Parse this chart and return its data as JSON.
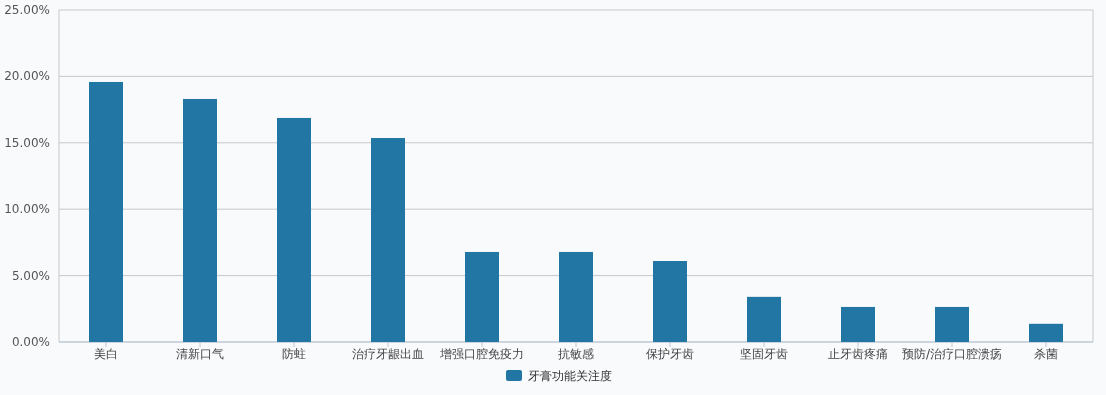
{
  "chart_data": {
    "type": "bar",
    "categories": [
      "美白",
      "清新口气",
      "防蛀",
      "治疗牙龈出血",
      "增强口腔免疫力",
      "抗敏感",
      "保护牙齿",
      "坚固牙齿",
      "止牙齿疼痛",
      "预防/治疗口腔溃疡",
      "杀菌"
    ],
    "series": [
      {
        "name": "牙膏功能关注度",
        "color": "#2276a3",
        "values": [
          19.58,
          18.3,
          16.87,
          15.36,
          6.78,
          6.78,
          6.1,
          3.4,
          2.64,
          2.64,
          1.37
        ]
      }
    ],
    "ylim": [
      0,
      25
    ],
    "yticks": [
      {
        "value": 0,
        "label": "0.00%"
      },
      {
        "value": 5,
        "label": "5.00%"
      },
      {
        "value": 10,
        "label": "10.00%"
      },
      {
        "value": 15,
        "label": "15.00%"
      },
      {
        "value": 20,
        "label": "20.00%"
      },
      {
        "value": 25,
        "label": "25.00%"
      }
    ],
    "grid": "y",
    "legend": "bottom"
  }
}
